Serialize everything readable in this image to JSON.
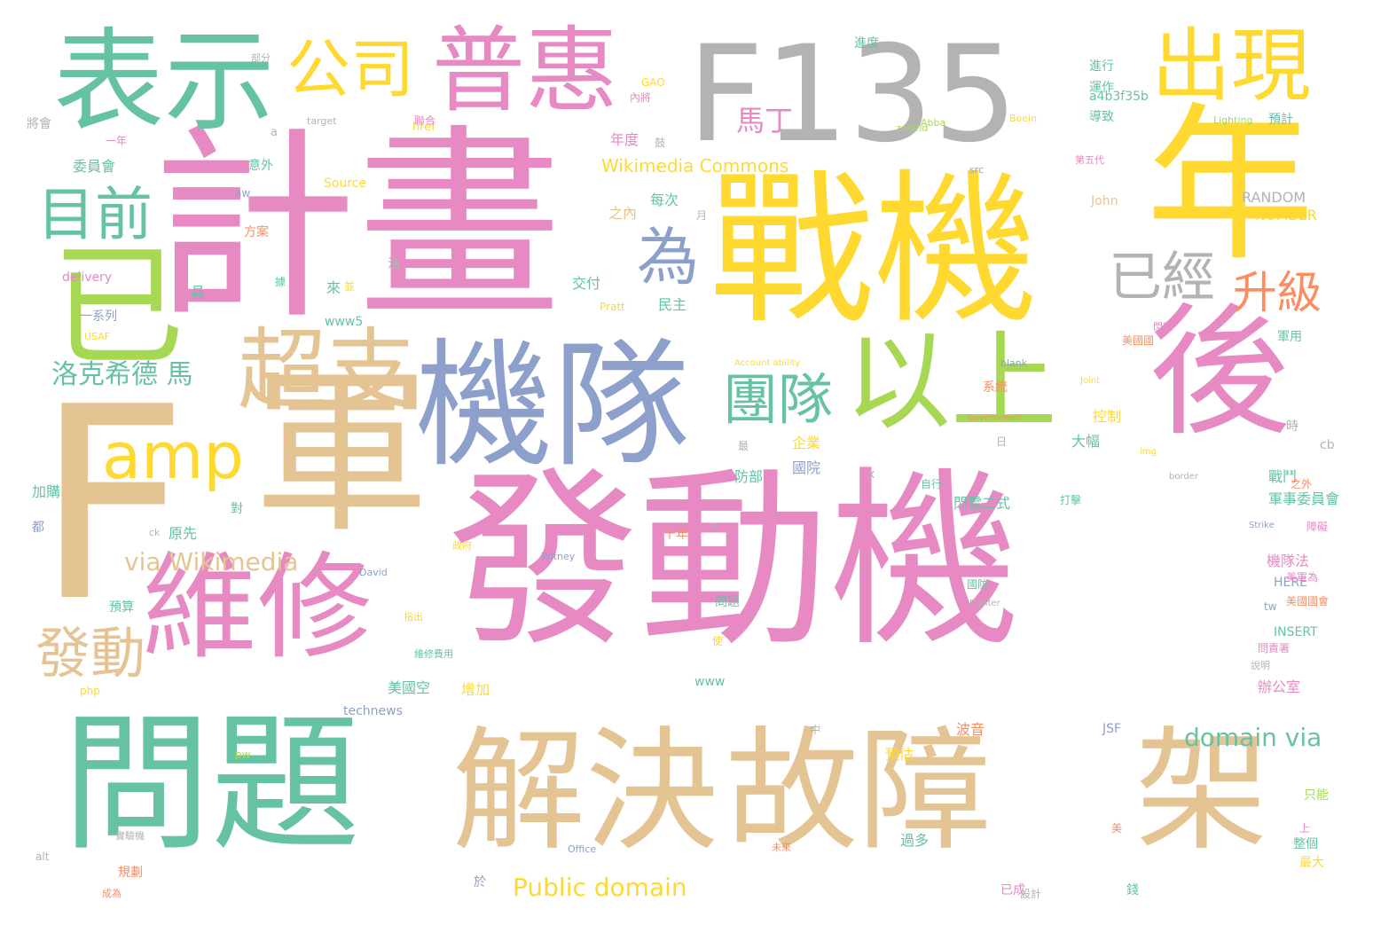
{
  "palette": {
    "pink": "#e78ac3",
    "yellow": "#ffd92f",
    "green": "#66c2a5",
    "blue": "#8da0cb",
    "tan": "#e5c494",
    "gray": "#b3b3b3",
    "orange": "#fc8d62",
    "lime": "#a6d854"
  },
  "words": [
    {
      "text": "計畫",
      "color": "pink"
    },
    {
      "text": "發動機",
      "color": "pink"
    },
    {
      "text": "戰機",
      "color": "yellow"
    },
    {
      "text": "F135",
      "color": "gray"
    },
    {
      "text": "問題",
      "color": "green"
    },
    {
      "text": "解決",
      "color": "tan"
    },
    {
      "text": "故障",
      "color": "tan"
    },
    {
      "text": "架",
      "color": "tan"
    },
    {
      "text": "機隊",
      "color": "blue"
    },
    {
      "text": "年",
      "color": "yellow"
    },
    {
      "text": "F",
      "color": "tan"
    },
    {
      "text": "軍",
      "color": "tan"
    },
    {
      "text": "後",
      "color": "pink"
    },
    {
      "text": "以上",
      "color": "lime"
    },
    {
      "text": "表示",
      "color": "green"
    },
    {
      "text": "維修",
      "color": "pink"
    },
    {
      "text": "普惠",
      "color": "pink"
    },
    {
      "text": "出現",
      "color": "yellow"
    },
    {
      "text": "amp",
      "color": "yellow"
    },
    {
      "text": "超支",
      "color": "tan"
    },
    {
      "text": "公司",
      "color": "yellow"
    },
    {
      "text": "已",
      "color": "lime"
    },
    {
      "text": "目前",
      "color": "green"
    },
    {
      "text": "團隊",
      "color": "green"
    },
    {
      "text": "為",
      "color": "blue"
    },
    {
      "text": "已經",
      "color": "gray"
    },
    {
      "text": "升級",
      "color": "orange"
    },
    {
      "text": "發動",
      "color": "tan"
    },
    {
      "text": "via Wikimedia",
      "color": "tan"
    },
    {
      "text": "洛克希德 馬",
      "color": "green"
    },
    {
      "text": "domain via",
      "color": "green"
    },
    {
      "text": "Public domain",
      "color": "yellow"
    },
    {
      "text": "Wikimedia Commons",
      "color": "yellow"
    },
    {
      "text": "馬丁",
      "color": "pink"
    },
    {
      "text": "a4b3f35b",
      "color": "green"
    },
    {
      "text": "進行",
      "color": "green"
    },
    {
      "text": "導致",
      "color": "green"
    },
    {
      "text": "運作",
      "color": "green"
    },
    {
      "text": "預計",
      "color": "green"
    },
    {
      "text": "委員會",
      "color": "green"
    },
    {
      "text": "年度",
      "color": "pink"
    },
    {
      "text": "每次",
      "color": "green"
    },
    {
      "text": "之內",
      "color": "tan"
    },
    {
      "text": "RANDOM",
      "color": "gray"
    },
    {
      "text": "NUMBER",
      "color": "yellow"
    },
    {
      "text": "John",
      "color": "tan"
    },
    {
      "text": "Source",
      "color": "yellow"
    },
    {
      "text": "意外",
      "color": "green"
    },
    {
      "text": "方案",
      "color": "orange"
    },
    {
      "text": "交付",
      "color": "green"
    },
    {
      "text": "民主",
      "color": "green"
    },
    {
      "text": "delivery",
      "color": "pink"
    },
    {
      "text": "一系列",
      "color": "blue"
    },
    {
      "text": "www5",
      "color": "green"
    },
    {
      "text": "軍用",
      "color": "green"
    },
    {
      "text": "系統",
      "color": "orange"
    },
    {
      "text": "控制",
      "color": "yellow"
    },
    {
      "text": "大幅",
      "color": "green"
    },
    {
      "text": "企業",
      "color": "yellow"
    },
    {
      "text": "防部",
      "color": "green"
    },
    {
      "text": "國院",
      "color": "blue"
    },
    {
      "text": "戰鬥",
      "color": "green"
    },
    {
      "text": "閃電二式",
      "color": "green"
    },
    {
      "text": "軍事委員會",
      "color": "green"
    },
    {
      "text": "加購",
      "color": "green"
    },
    {
      "text": "原先",
      "color": "green"
    },
    {
      "text": "對",
      "color": "green"
    },
    {
      "text": "十年",
      "color": "orange"
    },
    {
      "text": "機隊法",
      "color": "pink"
    },
    {
      "text": "HERE",
      "color": "blue"
    },
    {
      "text": "INSERT",
      "color": "green"
    },
    {
      "text": "問題",
      "color": "green"
    },
    {
      "text": "增加",
      "color": "yellow"
    },
    {
      "text": "美國空",
      "color": "green"
    },
    {
      "text": "technews",
      "color": "blue"
    },
    {
      "text": "JSF",
      "color": "blue"
    },
    {
      "text": "波音",
      "color": "orange"
    },
    {
      "text": "辦公室",
      "color": "pink"
    },
    {
      "text": "預算",
      "color": "green"
    },
    {
      "text": "預估",
      "color": "yellow"
    },
    {
      "text": "過多",
      "color": "green"
    },
    {
      "text": "整個",
      "color": "green"
    },
    {
      "text": "最大",
      "color": "yellow"
    },
    {
      "text": "只能",
      "color": "lime"
    },
    {
      "text": "已成",
      "color": "pink"
    },
    {
      "text": "設計",
      "color": "gray"
    },
    {
      "text": "規劃",
      "color": "orange"
    },
    {
      "text": "www",
      "color": "green"
    },
    {
      "text": "cb",
      "color": "gray"
    },
    {
      "text": "時",
      "color": "gray"
    },
    {
      "text": "GAO",
      "color": "yellow"
    },
    {
      "text": "內將",
      "color": "pink"
    },
    {
      "text": "將會",
      "color": "gray"
    },
    {
      "text": "一年",
      "color": "pink"
    },
    {
      "text": "Lighting",
      "color": "lime"
    },
    {
      "text": "Boein",
      "color": "yellow"
    },
    {
      "text": "Abba",
      "color": "lime"
    },
    {
      "text": "zoneid",
      "color": "lime"
    },
    {
      "text": "src",
      "color": "blue"
    },
    {
      "text": "blank",
      "color": "blue"
    },
    {
      "text": "Joint",
      "color": "yellow"
    },
    {
      "text": "Government",
      "color": "orange"
    },
    {
      "text": "img",
      "color": "yellow"
    },
    {
      "text": "border",
      "color": "gray"
    },
    {
      "text": "Strike",
      "color": "blue"
    },
    {
      "text": "Fighter",
      "color": "gray"
    },
    {
      "text": "Office",
      "color": "blue"
    },
    {
      "text": "Witney",
      "color": "blue"
    },
    {
      "text": "David",
      "color": "blue"
    },
    {
      "text": "Pratt",
      "color": "yellow"
    },
    {
      "text": "USAF",
      "color": "yellow"
    },
    {
      "text": "Account ability",
      "color": "yellow"
    },
    {
      "text": "php",
      "color": "yellow"
    },
    {
      "text": "pw",
      "color": "lime"
    },
    {
      "text": "tw",
      "color": "blue"
    },
    {
      "text": "target",
      "color": "gray"
    },
    {
      "text": "href",
      "color": "yellow"
    },
    {
      "text": "aw",
      "color": "blue"
    },
    {
      "text": "alt",
      "color": "gray"
    },
    {
      "text": "ck",
      "color": "gray"
    },
    {
      "text": "a",
      "color": "gray"
    },
    {
      "text": "x",
      "color": "gray"
    },
    {
      "text": "n",
      "color": "gray"
    },
    {
      "text": "美國國會",
      "color": "orange"
    },
    {
      "text": "美國國",
      "color": "orange"
    },
    {
      "text": "美軍為",
      "color": "pink"
    },
    {
      "text": "之外",
      "color": "orange"
    },
    {
      "text": "障礙",
      "color": "pink"
    },
    {
      "text": "閃電",
      "color": "pink"
    },
    {
      "text": "第五代",
      "color": "pink"
    },
    {
      "text": "自行",
      "color": "green"
    },
    {
      "text": "打擊",
      "color": "green"
    },
    {
      "text": "於",
      "color": "blue"
    },
    {
      "text": "日",
      "color": "gray"
    },
    {
      "text": "月",
      "color": "gray"
    },
    {
      "text": "最",
      "color": "gray"
    },
    {
      "text": "錢",
      "color": "green"
    },
    {
      "text": "上",
      "color": "pink"
    },
    {
      "text": "美",
      "color": "orange"
    },
    {
      "text": "中",
      "color": "gray"
    },
    {
      "text": "使",
      "color": "yellow"
    },
    {
      "text": "來",
      "color": "green"
    },
    {
      "text": "並",
      "color": "yellow"
    },
    {
      "text": "具",
      "color": "green"
    },
    {
      "text": "洛",
      "color": "gray"
    },
    {
      "text": "據",
      "color": "green"
    },
    {
      "text": "鼓",
      "color": "gray"
    },
    {
      "text": "都",
      "color": "blue"
    },
    {
      "text": "聯合",
      "color": "pink"
    },
    {
      "text": "部分",
      "color": "gray"
    },
    {
      "text": "進度",
      "color": "green"
    },
    {
      "text": "實驗機",
      "color": "gray"
    },
    {
      "text": "未來",
      "color": "orange"
    },
    {
      "text": "說明",
      "color": "gray"
    },
    {
      "text": "成為",
      "color": "orange"
    },
    {
      "text": "維修費用",
      "color": "green"
    },
    {
      "text": "指出",
      "color": "yellow"
    },
    {
      "text": "政府",
      "color": "yellow"
    },
    {
      "text": "問責署",
      "color": "pink"
    },
    {
      "text": "國防",
      "color": "green"
    }
  ]
}
